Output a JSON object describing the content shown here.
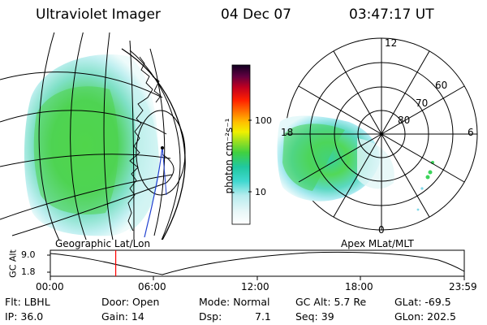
{
  "header": {
    "title": "Ultraviolet Imager",
    "date": "04 Dec 07",
    "time": "03:47:17 UT"
  },
  "colorbar": {
    "label": "photon cm⁻²s⁻¹",
    "ticks": [
      "100",
      "10"
    ]
  },
  "panels": {
    "left_label": "Geographic Lat/Lon",
    "right_label": "Apex  MLat/MLT"
  },
  "polar": {
    "lat_labels": [
      "60",
      "70",
      "80"
    ],
    "mlt_labels": [
      "12",
      "18",
      "6",
      "0"
    ]
  },
  "timeline": {
    "ylabel": "GC Alt",
    "yticks": [
      "9.0",
      "1.8"
    ],
    "xticks": [
      "00:00",
      "06:00",
      "12:00",
      "18:00",
      "23:59"
    ],
    "current_time_fraction": 0.158,
    "marker_color": "#ff0000"
  },
  "info": {
    "flt": "Flt: LBHL",
    "ip": "IP: 36.0",
    "door": "Door: Open",
    "gain": "Gain: 14",
    "mode": "Mode: Normal",
    "dsp_label": "Dsp:",
    "dsp_value": "7.1",
    "gc_alt": "GC Alt: 5.7 Re",
    "seq": "Seq: 39",
    "glat": "GLat: -69.5",
    "glon": "GLon: 202.5"
  }
}
